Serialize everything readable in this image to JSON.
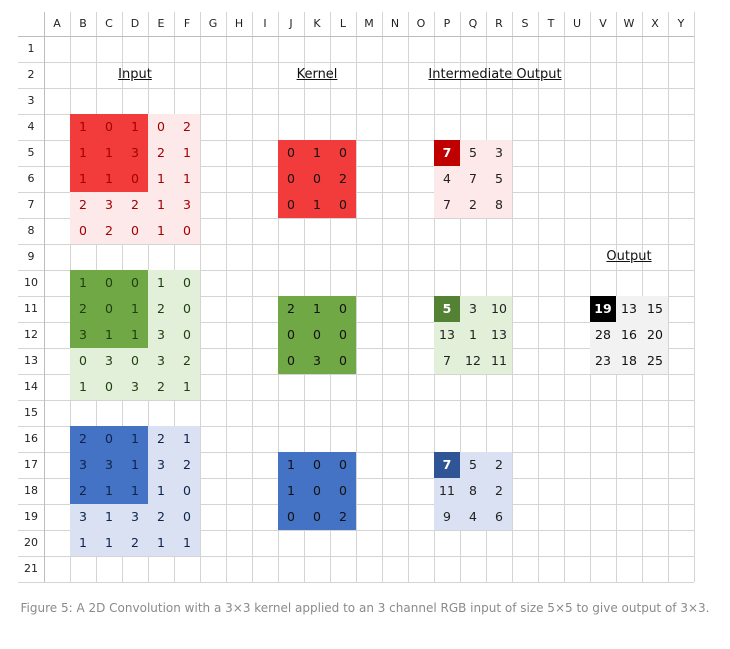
{
  "columns": [
    "A",
    "B",
    "C",
    "D",
    "E",
    "F",
    "G",
    "H",
    "I",
    "J",
    "K",
    "L",
    "M",
    "N",
    "O",
    "P",
    "Q",
    "R",
    "S",
    "T",
    "U",
    "V",
    "W",
    "X",
    "Y"
  ],
  "rows": [
    "1",
    "2",
    "3",
    "4",
    "5",
    "6",
    "7",
    "8",
    "9",
    "10",
    "11",
    "12",
    "13",
    "14",
    "15",
    "16",
    "17",
    "18",
    "19",
    "20",
    "21"
  ],
  "titles": {
    "input": "Input",
    "kernel": "Kernel",
    "intermediate": "Intermediate Output",
    "output": "Output"
  },
  "colors": {
    "red_dark": "#f23b3b",
    "red_light": "#fde9e9",
    "red_text": "#a30000",
    "green_dark": "#70a845",
    "green_light": "#e2efd9",
    "green_text": "#1e3d10",
    "blue_dark": "#4472c4",
    "blue_light": "#d9e1f2",
    "blue_text": "#0e234b",
    "red_hi": "#c00000",
    "green_hi": "#548235",
    "blue_hi": "#2f5597",
    "black_hi": "#000000"
  },
  "input": {
    "red": [
      [
        "1",
        "0",
        "1",
        "0",
        "2"
      ],
      [
        "1",
        "1",
        "3",
        "2",
        "1"
      ],
      [
        "1",
        "1",
        "0",
        "1",
        "1"
      ],
      [
        "2",
        "3",
        "2",
        "1",
        "3"
      ],
      [
        "0",
        "2",
        "0",
        "1",
        "0"
      ]
    ],
    "green": [
      [
        "1",
        "0",
        "0",
        "1",
        "0"
      ],
      [
        "2",
        "0",
        "1",
        "2",
        "0"
      ],
      [
        "3",
        "1",
        "1",
        "3",
        "0"
      ],
      [
        "0",
        "3",
        "0",
        "3",
        "2"
      ],
      [
        "1",
        "0",
        "3",
        "2",
        "1"
      ]
    ],
    "blue": [
      [
        "2",
        "0",
        "1",
        "2",
        "1"
      ],
      [
        "3",
        "3",
        "1",
        "3",
        "2"
      ],
      [
        "2",
        "1",
        "1",
        "1",
        "0"
      ],
      [
        "3",
        "1",
        "3",
        "2",
        "0"
      ],
      [
        "1",
        "1",
        "2",
        "1",
        "1"
      ]
    ]
  },
  "kernel": {
    "red": [
      [
        "0",
        "1",
        "0"
      ],
      [
        "0",
        "0",
        "2"
      ],
      [
        "0",
        "1",
        "0"
      ]
    ],
    "green": [
      [
        "2",
        "1",
        "0"
      ],
      [
        "0",
        "0",
        "0"
      ],
      [
        "0",
        "3",
        "0"
      ]
    ],
    "blue": [
      [
        "1",
        "0",
        "0"
      ],
      [
        "1",
        "0",
        "0"
      ],
      [
        "0",
        "0",
        "2"
      ]
    ]
  },
  "intermediate": {
    "red": [
      [
        "7",
        "5",
        "3"
      ],
      [
        "4",
        "7",
        "5"
      ],
      [
        "7",
        "2",
        "8"
      ]
    ],
    "green": [
      [
        "5",
        "3",
        "10"
      ],
      [
        "13",
        "1",
        "13"
      ],
      [
        "7",
        "12",
        "11"
      ]
    ],
    "blue": [
      [
        "7",
        "5",
        "2"
      ],
      [
        "11",
        "8",
        "2"
      ],
      [
        "9",
        "4",
        "6"
      ]
    ]
  },
  "output": [
    [
      "19",
      "13",
      "15"
    ],
    [
      "28",
      "16",
      "20"
    ],
    [
      "23",
      "18",
      "25"
    ]
  ],
  "caption": "Figure 5: A 2D Convolution with a 3×3 kernel applied to an 3 channel RGB input of size 5×5 to give output of 3×3."
}
